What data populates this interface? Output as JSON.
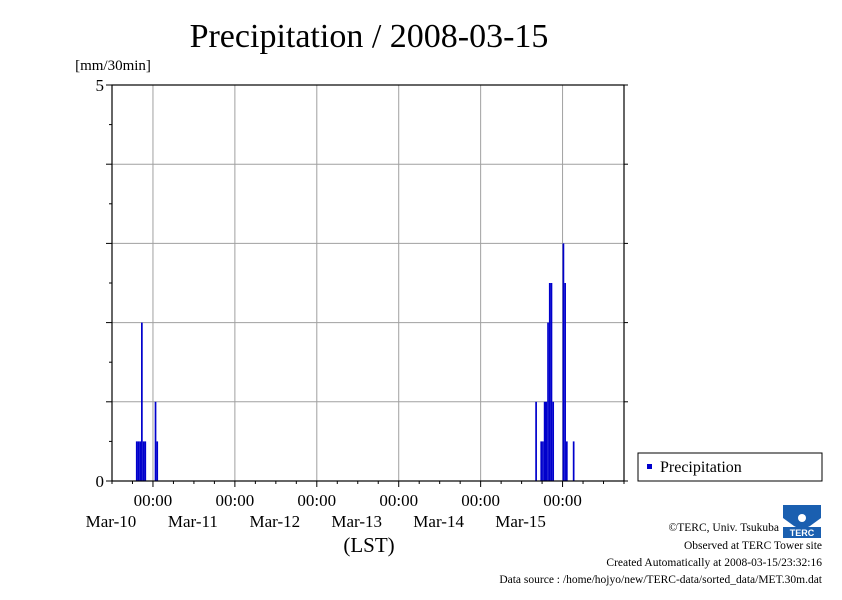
{
  "chart_data": {
    "type": "bar",
    "title": "Precipitation / 2008-03-15",
    "ylabel": "[mm/30min]",
    "xlabel": "(LST)",
    "ylim": [
      0,
      5
    ],
    "y_tick_labels": [
      "0",
      "5"
    ],
    "x_range": [
      "2008-03-09 12:00",
      "2008-03-15 18:00"
    ],
    "x_ticks": [
      {
        "time": "00:00",
        "date": "Mar-10"
      },
      {
        "time": "00:00",
        "date": "Mar-11"
      },
      {
        "time": "00:00",
        "date": "Mar-12"
      },
      {
        "time": "00:00",
        "date": "Mar-13"
      },
      {
        "time": "00:00",
        "date": "Mar-14"
      },
      {
        "time": "00:00",
        "date": "Mar-15"
      }
    ],
    "grid": true,
    "legend_position": "right",
    "series": [
      {
        "name": "Precipitation",
        "color": "#0000cc",
        "points": [
          {
            "x": "2008-03-09 19:30",
            "y": 0.5
          },
          {
            "x": "2008-03-09 20:00",
            "y": 0.5
          },
          {
            "x": "2008-03-09 20:30",
            "y": 0.5
          },
          {
            "x": "2008-03-09 21:00",
            "y": 2.0
          },
          {
            "x": "2008-03-09 21:30",
            "y": 0.5
          },
          {
            "x": "2008-03-09 22:00",
            "y": 0.5
          },
          {
            "x": "2008-03-10 01:00",
            "y": 1.0
          },
          {
            "x": "2008-03-10 01:30",
            "y": 0.5
          },
          {
            "x": "2008-03-14 16:30",
            "y": 1.0
          },
          {
            "x": "2008-03-14 18:00",
            "y": 0.5
          },
          {
            "x": "2008-03-14 18:30",
            "y": 0.5
          },
          {
            "x": "2008-03-14 19:00",
            "y": 1.0
          },
          {
            "x": "2008-03-14 19:30",
            "y": 1.0
          },
          {
            "x": "2008-03-14 20:00",
            "y": 2.0
          },
          {
            "x": "2008-03-14 20:30",
            "y": 2.5
          },
          {
            "x": "2008-03-14 21:00",
            "y": 2.5
          },
          {
            "x": "2008-03-14 21:30",
            "y": 1.0
          },
          {
            "x": "2008-03-15 00:30",
            "y": 3.0
          },
          {
            "x": "2008-03-15 01:00",
            "y": 2.5
          },
          {
            "x": "2008-03-15 01:30",
            "y": 0.5
          },
          {
            "x": "2008-03-15 03:30",
            "y": 0.5
          }
        ]
      }
    ]
  },
  "footer": {
    "copyright": "©TERC, Univ. Tsukuba",
    "observed": "Observed at TERC Tower site",
    "created": "Created Automatically at 2008-03-15/23:32:16",
    "source": "Data source : /home/hojyo/new/TERC-data/sorted_data/MET.30m.dat",
    "logo_text": "TERC"
  }
}
